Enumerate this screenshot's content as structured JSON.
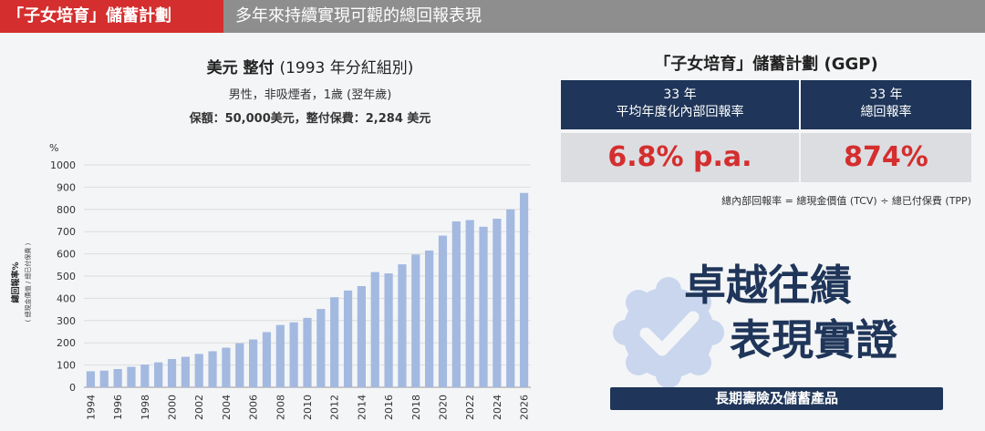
{
  "header": {
    "tag": "「子女培育」儲蓄計劃",
    "headline": "多年來持續實現可觀的總回報表現"
  },
  "chart_header": {
    "title_bold": "美元 整付",
    "title_normal": "(1993 年分紅組別)",
    "subtitle1": "男性，非吸煙者，1歲 (翌年歲)",
    "subtitle2": "保額：50,000美元，整付保費：2,284 美元"
  },
  "chart_data": {
    "type": "bar",
    "ylabel": "總回報率%",
    "ylabel_note": "( 總現金價值 / 總已付保費 )",
    "y_unit": "%",
    "ylim": [
      0,
      1000
    ],
    "yticks": [
      0,
      100,
      200,
      300,
      400,
      500,
      600,
      700,
      800,
      900,
      1000
    ],
    "x_tick_labels": [
      "1994",
      "1996",
      "1998",
      "2000",
      "2002",
      "2004",
      "2006",
      "2008",
      "2010",
      "2012",
      "2014",
      "2016",
      "2018",
      "2020",
      "2022",
      "2024",
      "2026"
    ],
    "categories": [
      1994,
      1995,
      1996,
      1997,
      1998,
      1999,
      2000,
      2001,
      2002,
      2003,
      2004,
      2005,
      2006,
      2007,
      2008,
      2009,
      2010,
      2011,
      2012,
      2013,
      2014,
      2015,
      2016,
      2017,
      2018,
      2019,
      2020,
      2021,
      2022,
      2023,
      2024,
      2025,
      2026
    ],
    "values": [
      72,
      75,
      82,
      92,
      102,
      112,
      127,
      137,
      150,
      162,
      178,
      198,
      215,
      248,
      280,
      292,
      312,
      352,
      405,
      435,
      455,
      518,
      512,
      553,
      597,
      615,
      682,
      746,
      752,
      722,
      758,
      800,
      874
    ],
    "bar_color": "#a3b9e0",
    "grid": true
  },
  "plan": {
    "title": "「子女培育」儲蓄計劃 (GGP)",
    "col1_header_line1": "33 年",
    "col1_header_line2": "平均年度化內部回報率",
    "col2_header_line1": "33 年",
    "col2_header_line2": "總回報率",
    "col1_value": "6.8% p.a.",
    "col2_value": "874%",
    "formula": "總內部回報率 = 總現金價值 (TCV) ÷ 總已付保費 (TPP)"
  },
  "promo": {
    "line1": "卓越往績",
    "line2": "表現實證",
    "product_bar": "長期壽險及儲蓄產品",
    "badge_icon": "checkmark-badge-icon"
  },
  "colors": {
    "accent_red": "#d42e2e",
    "navy": "#1f3559",
    "bar": "#a3b9e0"
  }
}
